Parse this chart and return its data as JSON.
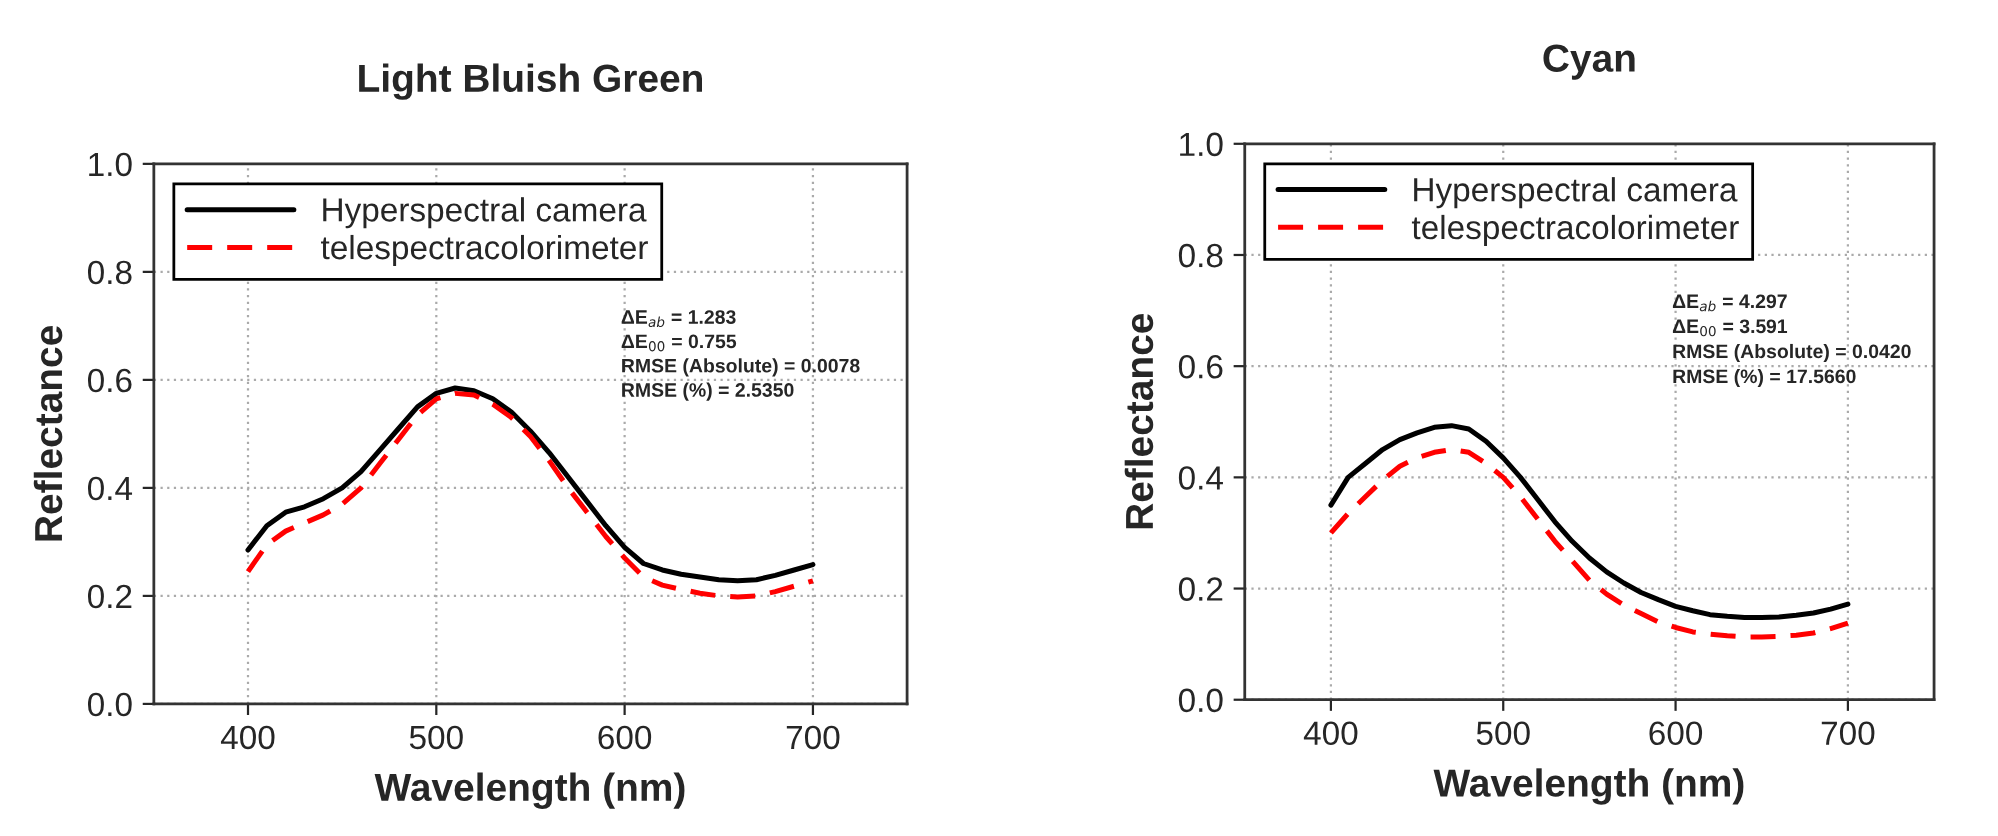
{
  "chart_data": [
    {
      "type": "line",
      "title": "Light Bluish Green",
      "xlabel": "Wavelength (nm)",
      "ylabel": "Reflectance",
      "xlim": [
        350,
        750
      ],
      "xticks": [
        400,
        500,
        600,
        700
      ],
      "ylim": [
        0,
        1
      ],
      "yticks": [
        {
          "value": 0,
          "label": "0.0"
        },
        {
          "value": 0.2,
          "label": "0.2"
        },
        {
          "value": 0.4,
          "label": "0.4"
        },
        {
          "value": 0.6,
          "label": "0.6"
        },
        {
          "value": 0.8,
          "label": "0.8"
        },
        {
          "value": 1,
          "label": "1.0"
        }
      ],
      "grid": true,
      "legend": "top left",
      "x": [
        400,
        410,
        420,
        430,
        440,
        450,
        460,
        470,
        480,
        490,
        500,
        510,
        520,
        530,
        540,
        550,
        560,
        570,
        580,
        590,
        600,
        610,
        620,
        630,
        640,
        650,
        660,
        670,
        680,
        690,
        700
      ],
      "series": [
        {
          "name": "Hyperspectral camera",
          "color": "#000000",
          "line_style": "solid",
          "values": [
            0.285,
            0.33,
            0.355,
            0.365,
            0.38,
            0.4,
            0.43,
            0.47,
            0.51,
            0.55,
            0.575,
            0.585,
            0.58,
            0.565,
            0.54,
            0.505,
            0.465,
            0.42,
            0.375,
            0.33,
            0.29,
            0.26,
            0.248,
            0.24,
            0.235,
            0.23,
            0.228,
            0.23,
            0.238,
            0.248,
            0.258
          ]
        },
        {
          "name": "telespectracolorimeter",
          "color": "#ff0000",
          "line_style": "dashed",
          "values": [
            0.245,
            0.295,
            0.32,
            0.335,
            0.35,
            0.37,
            0.4,
            0.445,
            0.49,
            0.535,
            0.565,
            0.575,
            0.572,
            0.555,
            0.53,
            0.495,
            0.45,
            0.4,
            0.355,
            0.31,
            0.27,
            0.235,
            0.22,
            0.212,
            0.205,
            0.2,
            0.198,
            0.2,
            0.208,
            0.218,
            0.228
          ]
        }
      ],
      "annotations": [
        "ΔE$_{ab}$ = 1.283",
        "ΔE$_{00}$ = 0.755",
        "RMSE (Absolute) = 0.0078",
        "RMSE (%) = 2.5350"
      ]
    },
    {
      "type": "line",
      "title": "Cyan",
      "xlabel": "Wavelength (nm)",
      "ylabel": "Reflectance",
      "xlim": [
        350,
        750
      ],
      "xticks": [
        400,
        500,
        600,
        700
      ],
      "ylim": [
        0,
        1
      ],
      "yticks": [
        {
          "value": 0,
          "label": "0.0"
        },
        {
          "value": 0.2,
          "label": "0.2"
        },
        {
          "value": 0.4,
          "label": "0.4"
        },
        {
          "value": 0.6,
          "label": "0.6"
        },
        {
          "value": 0.8,
          "label": "0.8"
        },
        {
          "value": 1,
          "label": "1.0"
        }
      ],
      "grid": true,
      "legend": "top left",
      "x": [
        400,
        410,
        420,
        430,
        440,
        450,
        460,
        470,
        480,
        490,
        500,
        510,
        520,
        530,
        540,
        550,
        560,
        570,
        580,
        590,
        600,
        610,
        620,
        630,
        640,
        650,
        660,
        670,
        680,
        690,
        700
      ],
      "series": [
        {
          "name": "Hyperspectral camera",
          "color": "#000000",
          "line_style": "solid",
          "values": [
            0.35,
            0.4,
            0.425,
            0.45,
            0.468,
            0.48,
            0.49,
            0.493,
            0.487,
            0.465,
            0.435,
            0.4,
            0.36,
            0.32,
            0.285,
            0.255,
            0.23,
            0.21,
            0.193,
            0.18,
            0.168,
            0.16,
            0.153,
            0.15,
            0.148,
            0.148,
            0.149,
            0.152,
            0.156,
            0.163,
            0.172
          ]
        },
        {
          "name": "telespectracolorimeter",
          "color": "#ff0000",
          "line_style": "dashed",
          "values": [
            0.3,
            0.335,
            0.365,
            0.395,
            0.42,
            0.435,
            0.445,
            0.45,
            0.445,
            0.425,
            0.4,
            0.365,
            0.325,
            0.285,
            0.25,
            0.215,
            0.19,
            0.17,
            0.155,
            0.14,
            0.13,
            0.122,
            0.118,
            0.115,
            0.113,
            0.113,
            0.114,
            0.116,
            0.12,
            0.128,
            0.138
          ]
        }
      ],
      "annotations": [
        "ΔE$_{ab}$ = 4.297",
        "ΔE$_{00}$ = 3.591",
        "RMSE (Absolute) = 0.0420",
        "RMSE (%) = 17.5660"
      ]
    }
  ]
}
